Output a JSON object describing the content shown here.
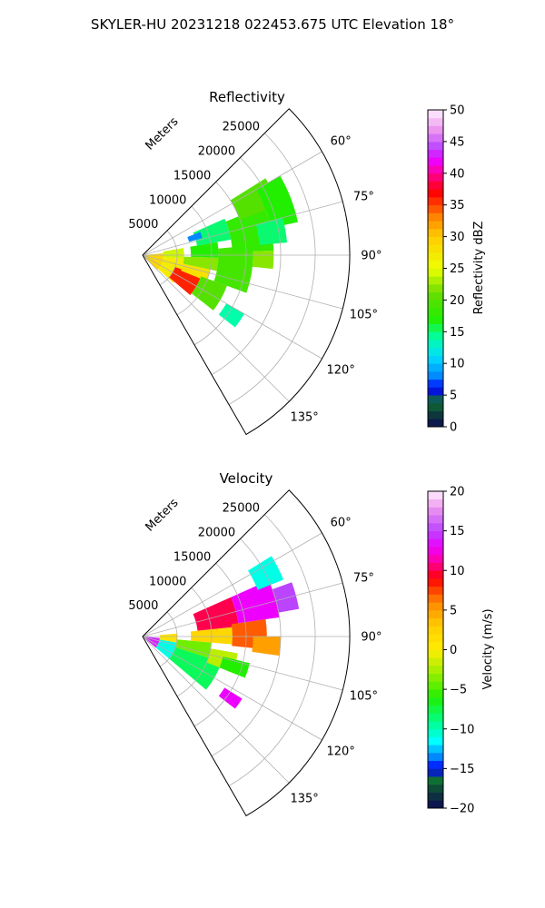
{
  "figure": {
    "suptitle": "SKYLER-HU  20231218  022453.675 UTC Elevation 18°"
  },
  "chart_data": [
    {
      "type": "heatmap",
      "projection": "polar-sector",
      "title": "Reflectivity",
      "radial_axis_label": "Meters",
      "radial_ticks": [
        5000,
        10000,
        15000,
        20000,
        25000
      ],
      "radial_tick_labels": [
        "5000",
        "10000",
        "15000",
        "20000",
        "25000"
      ],
      "radial_max": 30000,
      "azimuth_range_deg": [
        45,
        150
      ],
      "azimuth_ticks_deg": [
        60,
        75,
        90,
        105,
        120,
        135
      ],
      "azimuth_tick_labels": [
        "60°",
        "75°",
        "90°",
        "105°",
        "120°",
        "135°"
      ],
      "grid": true,
      "colorbar": {
        "label": "Reflectivity dBZ",
        "range": [
          0,
          50
        ],
        "ticks": [
          0,
          5,
          10,
          15,
          20,
          25,
          30,
          35,
          40,
          45,
          50
        ],
        "tick_labels": [
          "0",
          "5",
          "10",
          "15",
          "20",
          "25",
          "30",
          "35",
          "40",
          "45",
          "50"
        ],
        "levels": 40,
        "stops": [
          {
            "v": 0,
            "color": "#0c0c55"
          },
          {
            "v": 2,
            "color": "#0d3a3a"
          },
          {
            "v": 4,
            "color": "#0f6f33"
          },
          {
            "v": 6,
            "color": "#0000ff"
          },
          {
            "v": 8,
            "color": "#0088ff"
          },
          {
            "v": 11,
            "color": "#00ddff"
          },
          {
            "v": 14,
            "color": "#00ffaa"
          },
          {
            "v": 17,
            "color": "#22ee00"
          },
          {
            "v": 21,
            "color": "#66dd00"
          },
          {
            "v": 25,
            "color": "#eeff00"
          },
          {
            "v": 30,
            "color": "#ffcc00"
          },
          {
            "v": 33,
            "color": "#ff8800"
          },
          {
            "v": 37,
            "color": "#ff0000"
          },
          {
            "v": 40,
            "color": "#ff0099"
          },
          {
            "v": 42,
            "color": "#ee00ff"
          },
          {
            "v": 44,
            "color": "#bb44ff"
          },
          {
            "v": 47,
            "color": "#ee99ee"
          },
          {
            "v": 50,
            "color": "#fff0ff"
          }
        ]
      },
      "cells": [
        {
          "r": [
            0,
            3000
          ],
          "az": [
            85,
            135
          ],
          "v": 29
        },
        {
          "r": [
            3000,
            6000
          ],
          "az": [
            95,
            132
          ],
          "v": 27
        },
        {
          "r": [
            3000,
            6000
          ],
          "az": [
            80,
            95
          ],
          "v": 24
        },
        {
          "r": [
            5000,
            9000
          ],
          "az": [
            110,
            130
          ],
          "v": 36
        },
        {
          "r": [
            6000,
            10000
          ],
          "az": [
            102,
            112
          ],
          "v": 28
        },
        {
          "r": [
            9000,
            13000
          ],
          "az": [
            110,
            128
          ],
          "v": 20
        },
        {
          "r": [
            6000,
            12000
          ],
          "az": [
            92,
            102
          ],
          "v": 22
        },
        {
          "r": [
            7000,
            11000
          ],
          "az": [
            80,
            92
          ],
          "v": 17
        },
        {
          "r": [
            11000,
            16000
          ],
          "az": [
            85,
            110
          ],
          "v": 19
        },
        {
          "r": [
            8000,
            13000
          ],
          "az": [
            66,
            80
          ],
          "v": 15
        },
        {
          "r": [
            13000,
            19000
          ],
          "az": [
            68,
            88
          ],
          "v": 18
        },
        {
          "r": [
            15000,
            21000
          ],
          "az": [
            58,
            70
          ],
          "v": 20
        },
        {
          "r": [
            19000,
            23000
          ],
          "az": [
            60,
            78
          ],
          "v": 17
        },
        {
          "r": [
            7000,
            9000
          ],
          "az": [
            68,
            74
          ],
          "v": 8
        },
        {
          "r": [
            14000,
            17000
          ],
          "az": [
            120,
            128
          ],
          "v": 14
        },
        {
          "r": [
            16000,
            19000
          ],
          "az": [
            88,
            96
          ],
          "v": 22
        },
        {
          "r": [
            17000,
            21000
          ],
          "az": [
            75,
            85
          ],
          "v": 15
        }
      ]
    },
    {
      "type": "heatmap",
      "projection": "polar-sector",
      "title": "Velocity",
      "radial_axis_label": "Meters",
      "radial_ticks": [
        5000,
        10000,
        15000,
        20000,
        25000
      ],
      "radial_tick_labels": [
        "5000",
        "10000",
        "15000",
        "20000",
        "25000"
      ],
      "radial_max": 30000,
      "azimuth_range_deg": [
        45,
        150
      ],
      "azimuth_ticks_deg": [
        60,
        75,
        90,
        105,
        120,
        135
      ],
      "azimuth_tick_labels": [
        "60°",
        "75°",
        "90°",
        "105°",
        "120°",
        "135°"
      ],
      "grid": true,
      "colorbar": {
        "label": "Velocity (m/s)",
        "range": [
          -20,
          20
        ],
        "ticks": [
          -20,
          -15,
          -10,
          -5,
          0,
          5,
          10,
          15,
          20
        ],
        "tick_labels": [
          "−20",
          "−15",
          "−10",
          "−5",
          "0",
          "5",
          "10",
          "15",
          "20"
        ],
        "levels": 40,
        "stops": [
          {
            "v": -20,
            "color": "#0c0c55"
          },
          {
            "v": -18,
            "color": "#0d3a3a"
          },
          {
            "v": -16.5,
            "color": "#0f6f33"
          },
          {
            "v": -15,
            "color": "#0000ff"
          },
          {
            "v": -13.5,
            "color": "#0088ff"
          },
          {
            "v": -11.5,
            "color": "#00ffff"
          },
          {
            "v": -9,
            "color": "#00ff88"
          },
          {
            "v": -6,
            "color": "#22ee00"
          },
          {
            "v": -3,
            "color": "#99ee00"
          },
          {
            "v": 0,
            "color": "#ffee00"
          },
          {
            "v": 3,
            "color": "#ffcc00"
          },
          {
            "v": 6,
            "color": "#ff8800"
          },
          {
            "v": 9,
            "color": "#ff0000"
          },
          {
            "v": 11,
            "color": "#ff0099"
          },
          {
            "v": 13,
            "color": "#ee00ff"
          },
          {
            "v": 15,
            "color": "#bb44ff"
          },
          {
            "v": 18,
            "color": "#ee99ee"
          },
          {
            "v": 20,
            "color": "#fff0ff"
          }
        ]
      },
      "cells": [
        {
          "r": [
            0,
            2500
          ],
          "az": [
            95,
            130
          ],
          "v": 14
        },
        {
          "r": [
            2500,
            5000
          ],
          "az": [
            100,
            130
          ],
          "v": -11
        },
        {
          "r": [
            2500,
            5000
          ],
          "az": [
            85,
            100
          ],
          "v": 1
        },
        {
          "r": [
            5000,
            12000
          ],
          "az": [
            108,
            130
          ],
          "v": -8
        },
        {
          "r": [
            5000,
            10000
          ],
          "az": [
            95,
            108
          ],
          "v": -4
        },
        {
          "r": [
            10000,
            14000
          ],
          "az": [
            100,
            112
          ],
          "v": -2
        },
        {
          "r": [
            7000,
            13000
          ],
          "az": [
            84,
            95
          ],
          "v": 2
        },
        {
          "r": [
            8000,
            14000
          ],
          "az": [
            66,
            84
          ],
          "v": 10
        },
        {
          "r": [
            13000,
            18000
          ],
          "az": [
            82,
            96
          ],
          "v": 7
        },
        {
          "r": [
            14000,
            20000
          ],
          "az": [
            66,
            82
          ],
          "v": 13
        },
        {
          "r": [
            18000,
            22000
          ],
          "az": [
            58,
            68
          ],
          "v": -11
        },
        {
          "r": [
            20000,
            23000
          ],
          "az": [
            70,
            80
          ],
          "v": 15
        },
        {
          "r": [
            14000,
            17000
          ],
          "az": [
            122,
            128
          ],
          "v": 13
        },
        {
          "r": [
            12000,
            16000
          ],
          "az": [
            104,
            112
          ],
          "v": -6
        },
        {
          "r": [
            16000,
            20000
          ],
          "az": [
            90,
            98
          ],
          "v": 5
        }
      ]
    }
  ]
}
